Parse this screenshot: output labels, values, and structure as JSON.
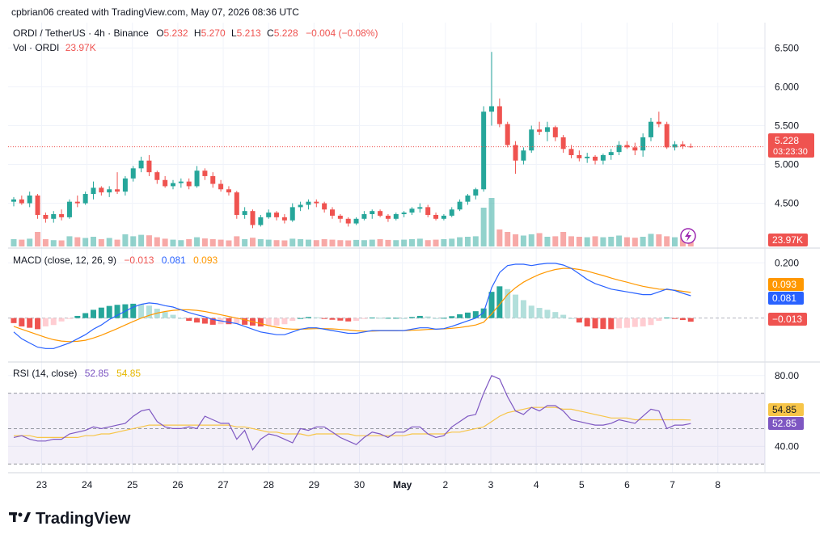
{
  "header": {
    "creator_line": "cpbrian06 created with TradingView.com, May 07, 2026 08:36 UTC"
  },
  "legend": {
    "symbol": "ORDI / TetherUS · 4h · Binance",
    "o_label": "O",
    "o_value": "5.232",
    "h_label": "H",
    "h_value": "5.270",
    "l_label": "L",
    "l_value": "5.213",
    "c_label": "C",
    "c_value": "5.228",
    "change": "−0.004 (−0.08%)",
    "vol_label": "Vol · ORDI",
    "vol_value": "23.97K"
  },
  "macd_legend": {
    "title": "MACD (close, 12, 26, 9)",
    "hist": "−0.013",
    "macd": "0.081",
    "signal": "0.093"
  },
  "rsi_legend": {
    "title": "RSI (14, close)",
    "rsi": "52.85",
    "ma": "54.85"
  },
  "badges": {
    "price": "5.228",
    "countdown": "03:23:30",
    "volume": "23.97K",
    "macd_signal": "0.093",
    "macd_line": "0.081",
    "macd_hist": "−0.013",
    "rsi_ma": "54.85",
    "rsi": "52.85"
  },
  "brand": {
    "name": "TradingView"
  },
  "colors": {
    "up": "#26a69a",
    "down": "#ef5350",
    "macd_line": "#2962ff",
    "signal_line": "#ff9800",
    "rsi_line": "#7e57c2",
    "rsi_ma": "#f7c548"
  },
  "icons": {
    "replay": "lightning-bolt-icon",
    "logo": "tradingview-logo-icon"
  },
  "chart_data": [
    {
      "type": "candlestick",
      "title": "ORDI / TetherUS · 4h · Binance",
      "price_ticks": [
        "6.500",
        "6.000",
        "5.500",
        "5.000",
        "4.500"
      ],
      "ylim": [
        4.1,
        6.65
      ],
      "last_price": 5.228,
      "x_ticks": [
        "23",
        "24",
        "25",
        "26",
        "27",
        "28",
        "29",
        "30",
        "May",
        "2",
        "3",
        "4",
        "5",
        "6",
        "7",
        "8"
      ],
      "candles_ohlc": [
        [
          4.52,
          4.58,
          4.46,
          4.55
        ],
        [
          4.55,
          4.6,
          4.48,
          4.5
        ],
        [
          4.5,
          4.65,
          4.45,
          4.6
        ],
        [
          4.6,
          4.62,
          4.3,
          4.35
        ],
        [
          4.35,
          4.38,
          4.25,
          4.3
        ],
        [
          4.3,
          4.4,
          4.25,
          4.36
        ],
        [
          4.36,
          4.42,
          4.28,
          4.32
        ],
        [
          4.32,
          4.55,
          4.3,
          4.52
        ],
        [
          4.52,
          4.6,
          4.45,
          4.5
        ],
        [
          4.5,
          4.65,
          4.48,
          4.62
        ],
        [
          4.62,
          4.78,
          4.55,
          4.7
        ],
        [
          4.7,
          4.72,
          4.6,
          4.64
        ],
        [
          4.64,
          4.72,
          4.58,
          4.68
        ],
        [
          4.68,
          4.9,
          4.62,
          4.65
        ],
        [
          4.65,
          4.85,
          4.6,
          4.82
        ],
        [
          4.82,
          4.98,
          4.78,
          4.95
        ],
        [
          4.95,
          5.1,
          4.9,
          5.05
        ],
        [
          5.05,
          5.12,
          4.85,
          4.9
        ],
        [
          4.9,
          4.92,
          4.75,
          4.8
        ],
        [
          4.8,
          4.85,
          4.7,
          4.72
        ],
        [
          4.72,
          4.8,
          4.68,
          4.76
        ],
        [
          4.76,
          4.82,
          4.7,
          4.78
        ],
        [
          4.78,
          4.82,
          4.68,
          4.72
        ],
        [
          4.72,
          4.98,
          4.7,
          4.92
        ],
        [
          4.92,
          4.95,
          4.8,
          4.85
        ],
        [
          4.85,
          4.9,
          4.7,
          4.75
        ],
        [
          4.75,
          4.8,
          4.65,
          4.68
        ],
        [
          4.68,
          4.72,
          4.6,
          4.64
        ],
        [
          4.64,
          4.66,
          4.3,
          4.35
        ],
        [
          4.35,
          4.45,
          4.3,
          4.4
        ],
        [
          4.4,
          4.42,
          4.18,
          4.22
        ],
        [
          4.22,
          4.35,
          4.2,
          4.32
        ],
        [
          4.32,
          4.42,
          4.3,
          4.38
        ],
        [
          4.38,
          4.4,
          4.28,
          4.32
        ],
        [
          4.32,
          4.36,
          4.24,
          4.28
        ],
        [
          4.28,
          4.5,
          4.26,
          4.45
        ],
        [
          4.45,
          4.52,
          4.4,
          4.48
        ],
        [
          4.48,
          4.55,
          4.42,
          4.52
        ],
        [
          4.52,
          4.55,
          4.45,
          4.5
        ],
        [
          4.5,
          4.52,
          4.38,
          4.42
        ],
        [
          4.42,
          4.45,
          4.3,
          4.34
        ],
        [
          4.34,
          4.36,
          4.25,
          4.3
        ],
        [
          4.3,
          4.32,
          4.2,
          4.24
        ],
        [
          4.24,
          4.32,
          4.22,
          4.3
        ],
        [
          4.3,
          4.4,
          4.28,
          4.36
        ],
        [
          4.36,
          4.42,
          4.3,
          4.4
        ],
        [
          4.4,
          4.42,
          4.32,
          4.34
        ],
        [
          4.34,
          4.36,
          4.26,
          4.3
        ],
        [
          4.3,
          4.38,
          4.28,
          4.36
        ],
        [
          4.36,
          4.4,
          4.32,
          4.38
        ],
        [
          4.38,
          4.45,
          4.35,
          4.43
        ],
        [
          4.43,
          4.5,
          4.38,
          4.45
        ],
        [
          4.45,
          4.48,
          4.32,
          4.35
        ],
        [
          4.35,
          4.38,
          4.28,
          4.3
        ],
        [
          4.3,
          4.36,
          4.28,
          4.34
        ],
        [
          4.34,
          4.45,
          4.32,
          4.42
        ],
        [
          4.42,
          4.55,
          4.4,
          4.52
        ],
        [
          4.52,
          4.62,
          4.48,
          4.6
        ],
        [
          4.6,
          4.7,
          4.55,
          4.68
        ],
        [
          4.68,
          5.75,
          4.65,
          5.68
        ],
        [
          5.68,
          6.45,
          5.5,
          5.75
        ],
        [
          5.75,
          5.85,
          5.48,
          5.52
        ],
        [
          5.52,
          5.55,
          5.22,
          5.25
        ],
        [
          5.25,
          5.3,
          4.88,
          5.05
        ],
        [
          5.05,
          5.22,
          5.0,
          5.18
        ],
        [
          5.18,
          5.5,
          5.15,
          5.45
        ],
        [
          5.45,
          5.55,
          5.38,
          5.42
        ],
        [
          5.42,
          5.55,
          5.3,
          5.48
        ],
        [
          5.48,
          5.5,
          5.3,
          5.35
        ],
        [
          5.35,
          5.38,
          5.15,
          5.2
        ],
        [
          5.2,
          5.25,
          5.08,
          5.12
        ],
        [
          5.12,
          5.18,
          5.04,
          5.08
        ],
        [
          5.08,
          5.15,
          5.02,
          5.1
        ],
        [
          5.1,
          5.12,
          5.0,
          5.05
        ],
        [
          5.05,
          5.14,
          5.0,
          5.12
        ],
        [
          5.12,
          5.2,
          5.06,
          5.16
        ],
        [
          5.16,
          5.3,
          5.12,
          5.25
        ],
        [
          5.25,
          5.3,
          5.2,
          5.22
        ],
        [
          5.22,
          5.28,
          5.12,
          5.18
        ],
        [
          5.18,
          5.4,
          5.1,
          5.35
        ],
        [
          5.35,
          5.6,
          5.3,
          5.55
        ],
        [
          5.55,
          5.68,
          5.48,
          5.52
        ],
        [
          5.52,
          5.55,
          5.2,
          5.22
        ],
        [
          5.22,
          5.3,
          5.18,
          5.26
        ],
        [
          5.26,
          5.3,
          5.2,
          5.232
        ],
        [
          5.232,
          5.27,
          5.213,
          5.228
        ]
      ],
      "volume_ylim": [
        0,
        2000
      ],
      "volume": [
        300,
        280,
        320,
        600,
        300,
        260,
        250,
        420,
        380,
        350,
        400,
        300,
        350,
        280,
        500,
        420,
        480,
        460,
        380,
        320,
        280,
        260,
        300,
        380,
        330,
        300,
        280,
        250,
        420,
        300,
        360,
        300,
        280,
        260,
        250,
        320,
        300,
        280,
        260,
        300,
        280,
        260,
        250,
        270,
        260,
        280,
        300,
        270,
        260,
        280,
        300,
        320,
        260,
        280,
        300,
        320,
        380,
        400,
        420,
        1600,
        2000,
        700,
        600,
        500,
        450,
        500,
        550,
        400,
        420,
        600,
        420,
        400,
        380,
        420,
        380,
        400,
        450,
        380,
        360,
        400,
        520,
        500,
        420,
        380,
        350,
        300
      ]
    },
    {
      "type": "line",
      "title": "MACD (close, 12, 26, 9)",
      "ticks": [
        "0.200"
      ],
      "ylim": [
        -0.15,
        0.23
      ],
      "series": [
        {
          "name": "MACD",
          "values": [
            -0.05,
            -0.075,
            -0.09,
            -0.105,
            -0.11,
            -0.11,
            -0.1,
            -0.09,
            -0.075,
            -0.06,
            -0.04,
            -0.025,
            -0.005,
            0.01,
            0.025,
            0.04,
            0.05,
            0.055,
            0.052,
            0.045,
            0.04,
            0.03,
            0.02,
            0.012,
            0.005,
            -0.005,
            -0.01,
            -0.015,
            -0.02,
            -0.03,
            -0.04,
            -0.05,
            -0.055,
            -0.06,
            -0.06,
            -0.05,
            -0.04,
            -0.035,
            -0.035,
            -0.04,
            -0.045,
            -0.05,
            -0.055,
            -0.055,
            -0.05,
            -0.045,
            -0.045,
            -0.045,
            -0.045,
            -0.045,
            -0.04,
            -0.035,
            -0.035,
            -0.04,
            -0.038,
            -0.03,
            -0.02,
            -0.01,
            0.0,
            0.02,
            0.11,
            0.165,
            0.19,
            0.195,
            0.195,
            0.19,
            0.195,
            0.198,
            0.198,
            0.192,
            0.18,
            0.16,
            0.14,
            0.125,
            0.115,
            0.105,
            0.1,
            0.095,
            0.09,
            0.085,
            0.085,
            0.095,
            0.105,
            0.1,
            0.09,
            0.081
          ]
        },
        {
          "name": "Signal",
          "values": [
            -0.03,
            -0.04,
            -0.05,
            -0.06,
            -0.07,
            -0.078,
            -0.083,
            -0.085,
            -0.084,
            -0.08,
            -0.072,
            -0.062,
            -0.05,
            -0.038,
            -0.025,
            -0.012,
            0.0,
            0.01,
            0.018,
            0.024,
            0.028,
            0.03,
            0.03,
            0.028,
            0.024,
            0.018,
            0.012,
            0.006,
            0.0,
            -0.006,
            -0.013,
            -0.02,
            -0.027,
            -0.033,
            -0.038,
            -0.04,
            -0.04,
            -0.039,
            -0.038,
            -0.038,
            -0.039,
            -0.041,
            -0.043,
            -0.046,
            -0.047,
            -0.047,
            -0.046,
            -0.046,
            -0.046,
            -0.045,
            -0.044,
            -0.043,
            -0.041,
            -0.04,
            -0.039,
            -0.037,
            -0.034,
            -0.03,
            -0.025,
            -0.015,
            0.015,
            0.05,
            0.085,
            0.11,
            0.13,
            0.145,
            0.158,
            0.168,
            0.176,
            0.18,
            0.18,
            0.176,
            0.17,
            0.162,
            0.154,
            0.145,
            0.137,
            0.13,
            0.122,
            0.115,
            0.11,
            0.105,
            0.103,
            0.101,
            0.097,
            0.093
          ]
        }
      ],
      "histogram": [
        -0.018,
        -0.03,
        -0.035,
        -0.04,
        -0.03,
        -0.025,
        -0.012,
        -0.003,
        0.008,
        0.018,
        0.03,
        0.038,
        0.044,
        0.048,
        0.05,
        0.052,
        0.05,
        0.045,
        0.034,
        0.022,
        0.012,
        0.0,
        -0.01,
        -0.016,
        -0.02,
        -0.024,
        -0.022,
        -0.022,
        -0.02,
        -0.024,
        -0.027,
        -0.03,
        -0.028,
        -0.027,
        -0.022,
        -0.01,
        0.0,
        0.004,
        0.003,
        -0.002,
        -0.006,
        -0.009,
        -0.012,
        -0.01,
        -0.003,
        0.002,
        0.001,
        0.001,
        0.001,
        0.0,
        0.004,
        0.008,
        0.006,
        0.0,
        0.001,
        0.007,
        0.014,
        0.02,
        0.025,
        0.035,
        0.095,
        0.115,
        0.105,
        0.085,
        0.065,
        0.045,
        0.037,
        0.03,
        0.022,
        0.012,
        0.0,
        -0.016,
        -0.03,
        -0.037,
        -0.039,
        -0.04,
        -0.037,
        -0.035,
        -0.032,
        -0.03,
        -0.025,
        -0.01,
        0.002,
        -0.001,
        -0.007,
        -0.013
      ]
    },
    {
      "type": "line",
      "title": "RSI (14, close)",
      "ticks": [
        "80.00",
        "40.00"
      ],
      "ylim": [
        26,
        84
      ],
      "bands": [
        70,
        50,
        30
      ],
      "series": [
        {
          "name": "RSI",
          "values": [
            45,
            46,
            44,
            43,
            43,
            44,
            44,
            47,
            48,
            49,
            51,
            50,
            51,
            52,
            53,
            57,
            60,
            61,
            54,
            51,
            50,
            50,
            51,
            50,
            57,
            55,
            53,
            53,
            44,
            49,
            38,
            44,
            47,
            46,
            44,
            42,
            50,
            49,
            51,
            51,
            48,
            45,
            43,
            41,
            45,
            48,
            47,
            45,
            48,
            48,
            51,
            51,
            47,
            45,
            46,
            51,
            54,
            57,
            58,
            70,
            80,
            78,
            68,
            60,
            58,
            62,
            60,
            63,
            63,
            60,
            55,
            54,
            53,
            52,
            52,
            53,
            55,
            54,
            53,
            57,
            61,
            60,
            50,
            52,
            52,
            52.85
          ]
        },
        {
          "name": "RSI-based MA",
          "values": [
            46,
            46,
            46,
            45,
            45,
            45,
            45,
            45,
            45,
            46,
            46,
            47,
            47,
            48,
            49,
            50,
            51,
            52,
            52,
            52,
            52,
            52,
            52,
            52,
            52,
            52,
            52,
            52,
            51,
            51,
            50,
            49,
            48,
            48,
            47,
            47,
            47,
            46,
            47,
            47,
            47,
            47,
            47,
            46,
            46,
            46,
            46,
            46,
            46,
            46,
            47,
            47,
            47,
            47,
            47,
            48,
            48,
            49,
            50,
            51,
            54,
            57,
            59,
            60,
            61,
            62,
            62,
            62,
            62,
            61,
            61,
            60,
            59,
            58,
            57,
            56,
            56,
            56,
            55,
            55,
            55,
            55,
            55,
            55,
            55,
            54.85
          ]
        }
      ]
    }
  ]
}
